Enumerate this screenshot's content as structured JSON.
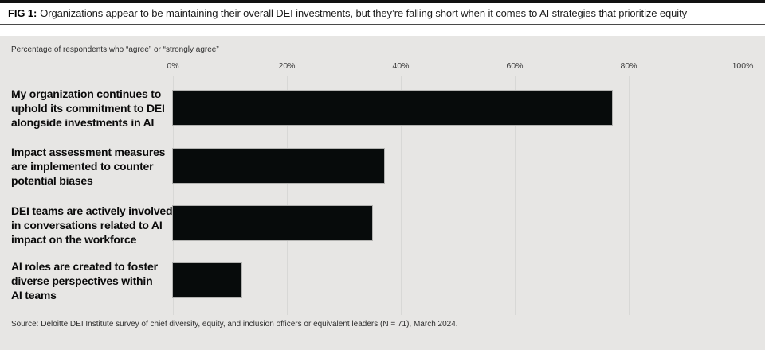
{
  "header": {
    "fig_label": "FIG 1:",
    "title": "Organizations appear to be maintaining their overall DEI investments, but they’re falling short when it comes to AI strategies that prioritize equity"
  },
  "chart_data": {
    "type": "bar",
    "orientation": "horizontal",
    "subtitle": "Percentage of respondents who “agree” or “strongly agree”",
    "categories": [
      "My organization continues to uphold its commitment to DEI alongside investments in AI",
      "Impact assessment measures are implemented to counter potential biases",
      "DEI teams are actively involved in conversations related to AI impact on the workforce",
      "AI roles are created to foster diverse perspectives within AI teams"
    ],
    "values": [
      77,
      37,
      35,
      12
    ],
    "bars": [
      {
        "label_lines": [
          "My organization continues to",
          "uphold its commitment to DEI",
          "alongside investments in AI"
        ],
        "value": 77
      },
      {
        "label_lines": [
          "Impact assessment measures",
          "are implemented to counter",
          "potential biases"
        ],
        "value": 37
      },
      {
        "label_lines": [
          "DEI teams are actively involved",
          "in conversations related to AI",
          "impact on the workforce"
        ],
        "value": 35
      },
      {
        "label_lines": [
          "AI roles are created to foster",
          "diverse perspectives within",
          "AI teams"
        ],
        "value": 12
      }
    ],
    "x_tick_labels": [
      "0%",
      "20%",
      "40%",
      "60%",
      "80%",
      "100%"
    ],
    "xlim": [
      0,
      100
    ],
    "grid": true,
    "legend": "none",
    "bar_color": "#070b0b",
    "panel_color": "#e7e6e4"
  },
  "source": "Source: Deloitte DEI Institute survey of chief diversity, equity, and inclusion officers or equivalent leaders (N = 71), March 2024."
}
